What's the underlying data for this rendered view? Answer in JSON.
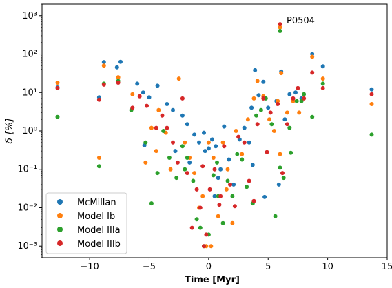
{
  "chart_data": {
    "type": "scatter",
    "xlabel": "Time [Myr]",
    "ylabel": "δ [%]",
    "xlim": [
      -14,
      15
    ],
    "ylim": [
      0.0005,
      2000
    ],
    "yscale": "log",
    "xticks": [
      -10,
      -5,
      0,
      5,
      10,
      15
    ],
    "xtick_labels": [
      "−10",
      "−5",
      "0",
      "5",
      "10",
      "15"
    ],
    "yticks": [
      0.001,
      0.01,
      0.1,
      1,
      10,
      100,
      1000
    ],
    "ytick_labels": [
      "10⁻³",
      "10⁻²",
      "10⁻¹",
      "10⁰",
      "10¹",
      "10²",
      "10³"
    ],
    "legend_position": "lower-left",
    "annotation": {
      "text": "P0504",
      "x": 6.5,
      "y": 600
    },
    "series": [
      {
        "name": "McMillan",
        "color": "#1f77b4",
        "points": [
          [
            -12.7,
            13.5
          ],
          [
            -9.2,
            7.5
          ],
          [
            -8.8,
            62
          ],
          [
            -7.7,
            45
          ],
          [
            -7.4,
            63
          ],
          [
            -6.0,
            17
          ],
          [
            -5.5,
            10
          ],
          [
            -5.0,
            7.5
          ],
          [
            -4.3,
            15
          ],
          [
            -3.5,
            5
          ],
          [
            -3.0,
            3.5
          ],
          [
            -2.2,
            2.5
          ],
          [
            -1.8,
            1.5
          ],
          [
            -1.2,
            0.8
          ],
          [
            -0.8,
            0.5
          ],
          [
            -0.4,
            0.9
          ],
          [
            0.0,
            0.35
          ],
          [
            0.3,
            0.6
          ],
          [
            0.6,
            0.4
          ],
          [
            1.0,
            0.1
          ],
          [
            1.3,
            1.3
          ],
          [
            1.7,
            0.18
          ],
          [
            2.1,
            0.04
          ],
          [
            2.6,
            0.6
          ],
          [
            3.0,
            1.2
          ],
          [
            3.4,
            0.5
          ],
          [
            3.6,
            4
          ],
          [
            3.9,
            38
          ],
          [
            4.2,
            8.5
          ],
          [
            4.6,
            19
          ],
          [
            5.0,
            4
          ],
          [
            5.7,
            6
          ],
          [
            5.9,
            0.04
          ],
          [
            6.1,
            35
          ],
          [
            6.4,
            2
          ],
          [
            6.8,
            9
          ],
          [
            7.3,
            10
          ],
          [
            7.8,
            7
          ],
          [
            8.7,
            100
          ],
          [
            9.6,
            48
          ],
          [
            13.7,
            12
          ],
          [
            3.7,
            0.13
          ],
          [
            4.7,
            0.019
          ],
          [
            -2.8,
            0.3
          ],
          [
            -0.3,
            0.3
          ],
          [
            0.5,
            0.02
          ],
          [
            -1.6,
            0.15
          ],
          [
            -5.4,
            0.42
          ],
          [
            0.8,
            0.06
          ]
        ]
      },
      {
        "name": "Model Ib",
        "color": "#ff7f0e",
        "points": [
          [
            -12.7,
            18
          ],
          [
            -9.2,
            0.2
          ],
          [
            -8.8,
            50
          ],
          [
            -7.6,
            25
          ],
          [
            -6.4,
            9
          ],
          [
            -5.3,
            0.15
          ],
          [
            -4.8,
            1.2
          ],
          [
            -4.2,
            3.5
          ],
          [
            -3.6,
            0.9
          ],
          [
            -3.2,
            0.1
          ],
          [
            -2.5,
            23
          ],
          [
            -2.0,
            0.5
          ],
          [
            -1.6,
            0.2
          ],
          [
            -1.2,
            0.08
          ],
          [
            -0.8,
            0.01
          ],
          [
            -0.5,
            0.02
          ],
          [
            0.0,
            0.5
          ],
          [
            0.4,
            0.2
          ],
          [
            0.8,
            0.006
          ],
          [
            1.2,
            0.5
          ],
          [
            1.6,
            0.1
          ],
          [
            2.0,
            0.004
          ],
          [
            2.3,
            1
          ],
          [
            2.8,
            0.25
          ],
          [
            3.3,
            2
          ],
          [
            3.8,
            7
          ],
          [
            4.1,
            20
          ],
          [
            4.6,
            8
          ],
          [
            5.1,
            2
          ],
          [
            5.5,
            1
          ],
          [
            5.8,
            6
          ],
          [
            6.0,
            0.25
          ],
          [
            6.1,
            32
          ],
          [
            6.6,
            3
          ],
          [
            7.1,
            6
          ],
          [
            7.6,
            3
          ],
          [
            8.7,
            85
          ],
          [
            9.6,
            23
          ],
          [
            13.7,
            5
          ],
          [
            0.2,
            0.001
          ],
          [
            -0.2,
            0.001
          ],
          [
            6.0,
            500
          ],
          [
            -4.4,
            0.3
          ],
          [
            1.5,
            0.03
          ]
        ]
      },
      {
        "name": "Model IIIa",
        "color": "#2ca02c",
        "points": [
          [
            -12.7,
            2.3
          ],
          [
            -9.2,
            0.12
          ],
          [
            -8.8,
            17
          ],
          [
            -7.6,
            20
          ],
          [
            -6.5,
            3.5
          ],
          [
            -5.3,
            0.5
          ],
          [
            -4.8,
            0.013
          ],
          [
            -4.3,
            0.08
          ],
          [
            -3.8,
            1.0
          ],
          [
            -3.3,
            0.2
          ],
          [
            -2.7,
            0.06
          ],
          [
            -2.2,
            0.4
          ],
          [
            -1.8,
            0.2
          ],
          [
            -1.3,
            0.05
          ],
          [
            -1.0,
            0.005
          ],
          [
            -0.7,
            0.003
          ],
          [
            -0.4,
            0.001
          ],
          [
            0.0,
            0.002
          ],
          [
            0.4,
            0.07
          ],
          [
            0.8,
            0.02
          ],
          [
            1.2,
            0.004
          ],
          [
            1.6,
            0.05
          ],
          [
            2.0,
            0.02
          ],
          [
            2.4,
            0.25
          ],
          [
            2.8,
            0.18
          ],
          [
            3.2,
            0.035
          ],
          [
            3.7,
            0.013
          ],
          [
            4.0,
            2.5
          ],
          [
            4.4,
            3.5
          ],
          [
            4.8,
            7
          ],
          [
            5.3,
            1.5
          ],
          [
            5.6,
            0.006
          ],
          [
            6.0,
            0.11
          ],
          [
            6.3,
            0.06
          ],
          [
            6.8,
            1.2
          ],
          [
            6.9,
            0.27
          ],
          [
            7.4,
            6
          ],
          [
            7.8,
            6
          ],
          [
            8.0,
            9
          ],
          [
            8.7,
            2.3
          ],
          [
            9.6,
            17
          ],
          [
            13.7,
            0.8
          ],
          [
            6.0,
            400
          ],
          [
            -2.0,
            0.1
          ],
          [
            0.7,
            0.15
          ]
        ]
      },
      {
        "name": "Model IIIb",
        "color": "#d62728",
        "points": [
          [
            -12.7,
            13
          ],
          [
            -9.2,
            6.5
          ],
          [
            -8.8,
            16
          ],
          [
            -7.6,
            18
          ],
          [
            -6.4,
            4
          ],
          [
            -5.8,
            8
          ],
          [
            -5.2,
            4.5
          ],
          [
            -4.4,
            1.2
          ],
          [
            -3.9,
            2.5
          ],
          [
            -3.5,
            1.2
          ],
          [
            -3.0,
            0.5
          ],
          [
            -2.6,
            0.15
          ],
          [
            -2.2,
            7
          ],
          [
            -1.8,
            0.08
          ],
          [
            -1.4,
            0.003
          ],
          [
            -1.0,
            0.03
          ],
          [
            -0.7,
            0.01
          ],
          [
            -0.4,
            0.001
          ],
          [
            -0.2,
            0.002
          ],
          [
            0.1,
            0.03
          ],
          [
            0.5,
            0.1
          ],
          [
            0.9,
            0.012
          ],
          [
            1.3,
            0.4
          ],
          [
            1.8,
            0.04
          ],
          [
            2.2,
            0.011
          ],
          [
            2.5,
            0.7
          ],
          [
            3.0,
            0.5
          ],
          [
            3.4,
            0.05
          ],
          [
            3.8,
            0.015
          ],
          [
            4.1,
            1.5
          ],
          [
            4.6,
            7
          ],
          [
            4.9,
            0.28
          ],
          [
            5.2,
            3
          ],
          [
            5.8,
            5
          ],
          [
            6.2,
            0.08
          ],
          [
            6.6,
            1.5
          ],
          [
            7.1,
            7
          ],
          [
            7.5,
            13
          ],
          [
            8.0,
            7
          ],
          [
            8.7,
            33
          ],
          [
            9.6,
            13
          ],
          [
            13.7,
            9
          ],
          [
            6.0,
            600
          ],
          [
            -0.5,
            0.12
          ],
          [
            1.0,
            0.02
          ]
        ]
      }
    ]
  }
}
